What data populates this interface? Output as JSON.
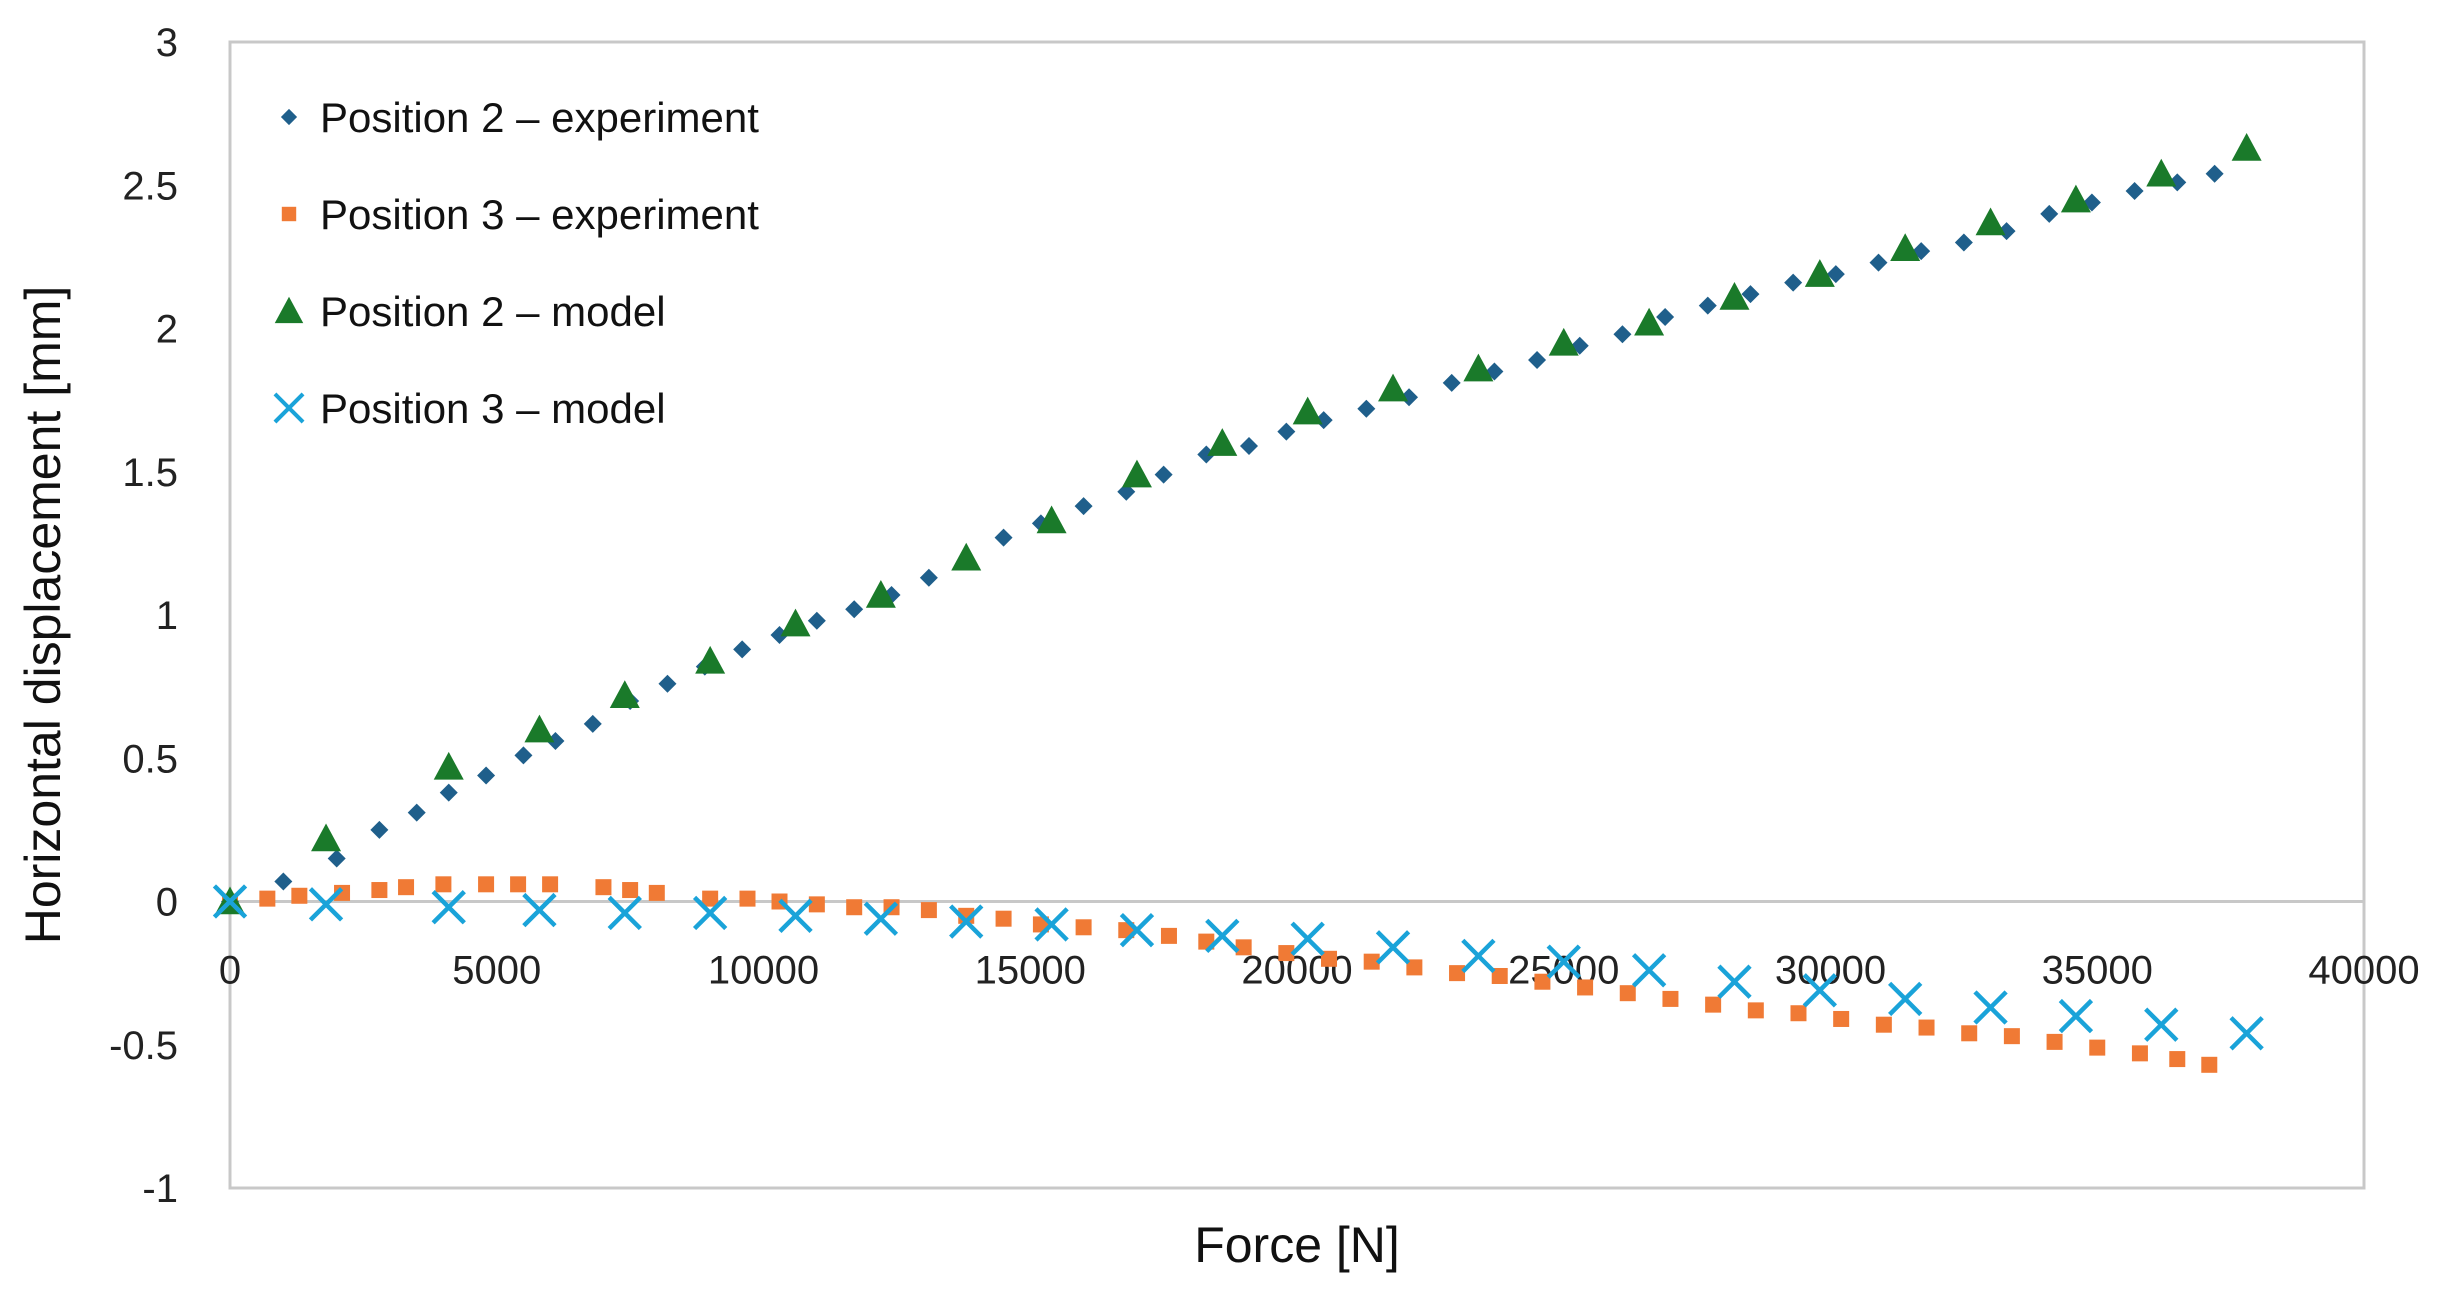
{
  "chart_data": {
    "type": "scatter",
    "title": "",
    "xlabel": "Force [N]",
    "ylabel": "Horizontal displacement [mm]",
    "xlim": [
      0,
      40000
    ],
    "ylim": [
      -1,
      3
    ],
    "xticks": [
      0,
      5000,
      10000,
      15000,
      20000,
      25000,
      30000,
      35000,
      40000
    ],
    "yticks": [
      -1,
      -0.5,
      0,
      0.5,
      1,
      1.5,
      2,
      2.5,
      3
    ],
    "grid": false,
    "legend_position": "top-left",
    "series": [
      {
        "name": "Position 2 – experiment",
        "marker": "diamond",
        "color": "#1f5f8b",
        "points": [
          [
            0,
            0.0
          ],
          [
            1000,
            0.07
          ],
          [
            2000,
            0.15
          ],
          [
            2800,
            0.25
          ],
          [
            3500,
            0.31
          ],
          [
            4100,
            0.38
          ],
          [
            4800,
            0.44
          ],
          [
            5500,
            0.51
          ],
          [
            6100,
            0.56
          ],
          [
            6800,
            0.62
          ],
          [
            7500,
            0.7
          ],
          [
            8200,
            0.76
          ],
          [
            8900,
            0.82
          ],
          [
            9600,
            0.88
          ],
          [
            10300,
            0.93
          ],
          [
            11000,
            0.98
          ],
          [
            11700,
            1.02
          ],
          [
            12400,
            1.07
          ],
          [
            13100,
            1.13
          ],
          [
            13800,
            1.19
          ],
          [
            14500,
            1.27
          ],
          [
            15200,
            1.32
          ],
          [
            16000,
            1.38
          ],
          [
            16800,
            1.43
          ],
          [
            17500,
            1.49
          ],
          [
            18300,
            1.56
          ],
          [
            19100,
            1.59
          ],
          [
            19800,
            1.64
          ],
          [
            20500,
            1.68
          ],
          [
            21300,
            1.72
          ],
          [
            22100,
            1.76
          ],
          [
            22900,
            1.81
          ],
          [
            23700,
            1.85
          ],
          [
            24500,
            1.89
          ],
          [
            25300,
            1.94
          ],
          [
            26100,
            1.98
          ],
          [
            26900,
            2.04
          ],
          [
            27700,
            2.08
          ],
          [
            28500,
            2.12
          ],
          [
            29300,
            2.16
          ],
          [
            30100,
            2.19
          ],
          [
            30900,
            2.23
          ],
          [
            31700,
            2.27
          ],
          [
            32500,
            2.3
          ],
          [
            33300,
            2.34
          ],
          [
            34100,
            2.4
          ],
          [
            34900,
            2.44
          ],
          [
            35700,
            2.48
          ],
          [
            36500,
            2.51
          ],
          [
            37200,
            2.54
          ]
        ]
      },
      {
        "name": "Position 3 – experiment",
        "marker": "square",
        "color": "#f07a35",
        "points": [
          [
            0,
            0.0
          ],
          [
            700,
            0.01
          ],
          [
            1300,
            0.02
          ],
          [
            2100,
            0.03
          ],
          [
            2800,
            0.04
          ],
          [
            3300,
            0.05
          ],
          [
            4000,
            0.06
          ],
          [
            4800,
            0.06
          ],
          [
            5400,
            0.06
          ],
          [
            6000,
            0.06
          ],
          [
            7000,
            0.05
          ],
          [
            7500,
            0.04
          ],
          [
            8000,
            0.03
          ],
          [
            9000,
            0.01
          ],
          [
            9700,
            0.01
          ],
          [
            10300,
            0.0
          ],
          [
            11000,
            -0.01
          ],
          [
            11700,
            -0.02
          ],
          [
            12400,
            -0.02
          ],
          [
            13100,
            -0.03
          ],
          [
            13800,
            -0.05
          ],
          [
            14500,
            -0.06
          ],
          [
            15200,
            -0.08
          ],
          [
            16000,
            -0.09
          ],
          [
            16800,
            -0.1
          ],
          [
            17600,
            -0.12
          ],
          [
            18300,
            -0.14
          ],
          [
            19000,
            -0.16
          ],
          [
            19800,
            -0.18
          ],
          [
            20600,
            -0.2
          ],
          [
            21400,
            -0.21
          ],
          [
            22200,
            -0.23
          ],
          [
            23000,
            -0.25
          ],
          [
            23800,
            -0.26
          ],
          [
            24600,
            -0.28
          ],
          [
            25400,
            -0.3
          ],
          [
            26200,
            -0.32
          ],
          [
            27000,
            -0.34
          ],
          [
            27800,
            -0.36
          ],
          [
            28600,
            -0.38
          ],
          [
            29400,
            -0.39
          ],
          [
            30200,
            -0.41
          ],
          [
            31000,
            -0.43
          ],
          [
            31800,
            -0.44
          ],
          [
            32600,
            -0.46
          ],
          [
            33400,
            -0.47
          ],
          [
            34200,
            -0.49
          ],
          [
            35000,
            -0.51
          ],
          [
            35800,
            -0.53
          ],
          [
            36500,
            -0.55
          ],
          [
            37100,
            -0.57
          ]
        ]
      },
      {
        "name": "Position 2 – model",
        "marker": "triangle",
        "color": "#1a7a2a",
        "points": [
          [
            0,
            0.0
          ],
          [
            1800,
            0.22
          ],
          [
            4100,
            0.47
          ],
          [
            5800,
            0.6
          ],
          [
            7400,
            0.72
          ],
          [
            9000,
            0.84
          ],
          [
            10600,
            0.97
          ],
          [
            12200,
            1.07
          ],
          [
            13800,
            1.2
          ],
          [
            15400,
            1.33
          ],
          [
            17000,
            1.49
          ],
          [
            18600,
            1.6
          ],
          [
            20200,
            1.71
          ],
          [
            21800,
            1.79
          ],
          [
            23400,
            1.86
          ],
          [
            25000,
            1.95
          ],
          [
            26600,
            2.02
          ],
          [
            28200,
            2.11
          ],
          [
            29800,
            2.19
          ],
          [
            31400,
            2.28
          ],
          [
            33000,
            2.37
          ],
          [
            34600,
            2.45
          ],
          [
            36200,
            2.54
          ],
          [
            37800,
            2.63
          ]
        ]
      },
      {
        "name": "Position 3 – model",
        "marker": "x",
        "color": "#1aa3d9",
        "points": [
          [
            0,
            0.0
          ],
          [
            1800,
            -0.01
          ],
          [
            4100,
            -0.02
          ],
          [
            5800,
            -0.03
          ],
          [
            7400,
            -0.04
          ],
          [
            9000,
            -0.04
          ],
          [
            10600,
            -0.05
          ],
          [
            12200,
            -0.06
          ],
          [
            13800,
            -0.07
          ],
          [
            15400,
            -0.08
          ],
          [
            17000,
            -0.1
          ],
          [
            18600,
            -0.12
          ],
          [
            20200,
            -0.13
          ],
          [
            21800,
            -0.16
          ],
          [
            23400,
            -0.19
          ],
          [
            25000,
            -0.21
          ],
          [
            26600,
            -0.24
          ],
          [
            28200,
            -0.28
          ],
          [
            29800,
            -0.31
          ],
          [
            31400,
            -0.34
          ],
          [
            33000,
            -0.37
          ],
          [
            34600,
            -0.4
          ],
          [
            36200,
            -0.43
          ],
          [
            37800,
            -0.46
          ]
        ]
      }
    ]
  }
}
